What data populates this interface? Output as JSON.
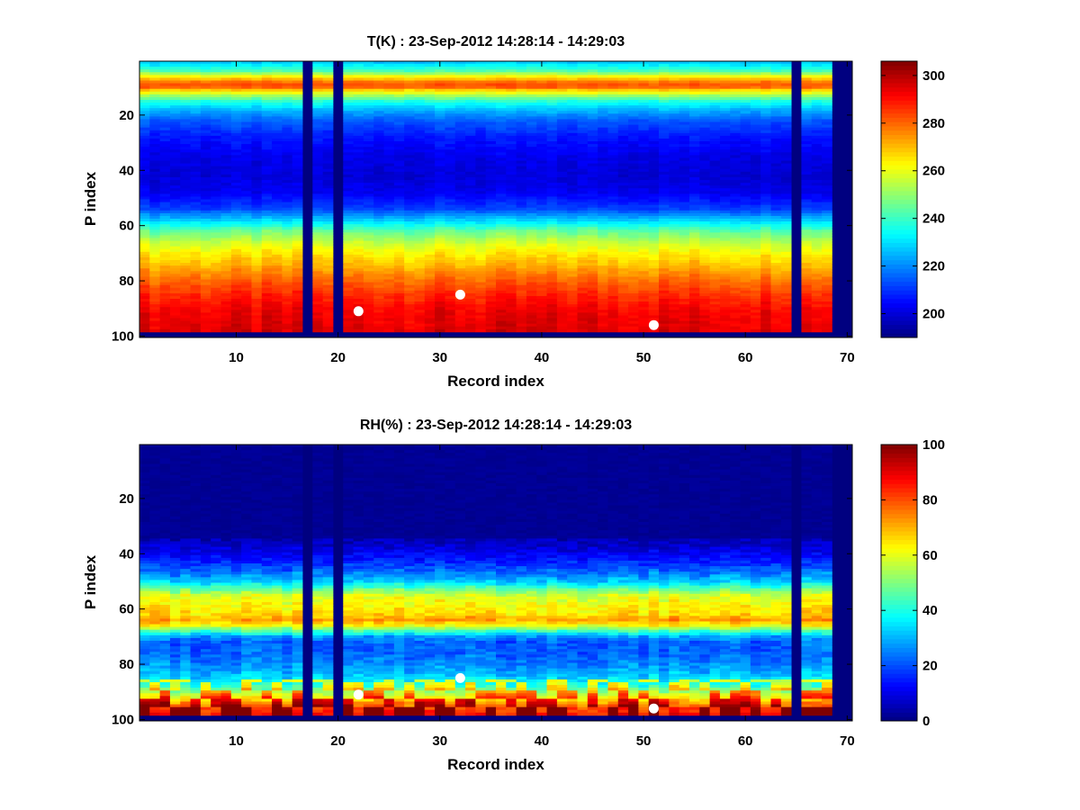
{
  "figure": {
    "background": "#ffffff"
  },
  "colormap": "jet",
  "chart_data": [
    {
      "type": "heatmap",
      "title": "T(K) : 23-Sep-2012 14:28:14 - 14:29:03",
      "xlabel": "Record index",
      "ylabel": "P index",
      "xlim": [
        0.5,
        70.5
      ],
      "ylim": [
        0.5,
        100.5
      ],
      "y_reversed": true,
      "xticks": [
        10,
        20,
        30,
        40,
        50,
        60,
        70
      ],
      "yticks": [
        20,
        40,
        60,
        80,
        100
      ],
      "clim": [
        190,
        306
      ],
      "colorbar_ticks": [
        200,
        220,
        240,
        260,
        280,
        300
      ],
      "n_records": 70,
      "n_levels": 100,
      "valid_levels": [
        1,
        98
      ],
      "missing_records": [
        17,
        20,
        65,
        69,
        70
      ],
      "profile": [
        [
          1,
          228
        ],
        [
          4,
          242
        ],
        [
          6,
          262
        ],
        [
          8,
          278
        ],
        [
          9,
          282
        ],
        [
          10,
          280
        ],
        [
          11,
          268
        ],
        [
          13,
          252
        ],
        [
          15,
          238
        ],
        [
          18,
          226
        ],
        [
          22,
          215
        ],
        [
          28,
          207
        ],
        [
          35,
          202
        ],
        [
          42,
          200
        ],
        [
          48,
          203
        ],
        [
          54,
          212
        ],
        [
          58,
          228
        ],
        [
          62,
          245
        ],
        [
          66,
          256
        ],
        [
          70,
          264
        ],
        [
          74,
          270
        ],
        [
          78,
          277
        ],
        [
          82,
          283
        ],
        [
          86,
          288
        ],
        [
          90,
          292
        ],
        [
          94,
          294
        ],
        [
          98,
          295
        ]
      ],
      "markers": [
        [
          22,
          91
        ],
        [
          32,
          85
        ],
        [
          51,
          96
        ]
      ]
    },
    {
      "type": "heatmap",
      "title": "RH(%) : 23-Sep-2012 14:28:14 - 14:29:03",
      "xlabel": "Record index",
      "ylabel": "P index",
      "xlim": [
        0.5,
        70.5
      ],
      "ylim": [
        0.5,
        100.5
      ],
      "y_reversed": true,
      "xticks": [
        10,
        20,
        30,
        40,
        50,
        60,
        70
      ],
      "yticks": [
        20,
        40,
        60,
        80,
        100
      ],
      "clim": [
        0,
        100
      ],
      "colorbar_ticks": [
        0,
        20,
        40,
        60,
        80,
        100
      ],
      "n_records": 70,
      "n_levels": 100,
      "valid_levels": [
        1,
        98
      ],
      "missing_records": [
        17,
        20,
        65,
        69,
        70
      ],
      "profile": [
        [
          1,
          2
        ],
        [
          30,
          2
        ],
        [
          36,
          6
        ],
        [
          42,
          14
        ],
        [
          46,
          22
        ],
        [
          50,
          32
        ],
        [
          53,
          48
        ],
        [
          55,
          58
        ],
        [
          58,
          62
        ],
        [
          62,
          66
        ],
        [
          64,
          72
        ],
        [
          66,
          62
        ],
        [
          68,
          44
        ],
        [
          70,
          28
        ],
        [
          72,
          22
        ],
        [
          76,
          22
        ],
        [
          80,
          26
        ],
        [
          84,
          32
        ],
        [
          88,
          42
        ],
        [
          91,
          58
        ],
        [
          94,
          72
        ],
        [
          96,
          82
        ],
        [
          98,
          86
        ]
      ],
      "markers": [
        [
          22,
          91
        ],
        [
          32,
          85
        ],
        [
          51,
          96
        ]
      ]
    }
  ]
}
